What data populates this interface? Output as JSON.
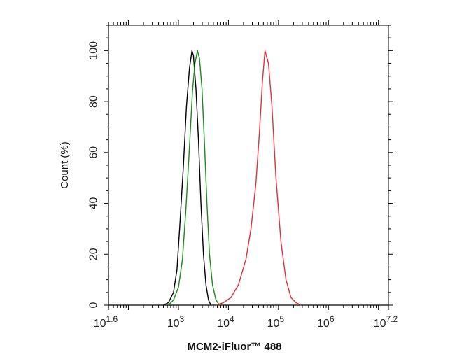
{
  "chart_data": {
    "type": "line",
    "title": "",
    "xlabel": "MCM2-iFluor™ 488",
    "ylabel": "Count (%)",
    "x_scale": "log10",
    "xlim_exponent": [
      1.6,
      7.2
    ],
    "ylim": [
      0,
      110
    ],
    "x_ticks": [
      {
        "base": "10",
        "exp": "1.6",
        "value": 1.6
      },
      {
        "base": "10",
        "exp": "3",
        "value": 3
      },
      {
        "base": "10",
        "exp": "4",
        "value": 4
      },
      {
        "base": "10",
        "exp": "5",
        "value": 5
      },
      {
        "base": "10",
        "exp": "6",
        "value": 6
      },
      {
        "base": "10",
        "exp": "7.2",
        "value": 7.2
      }
    ],
    "y_ticks": [
      "0",
      "20",
      "40",
      "60",
      "80",
      "100"
    ],
    "grid": false,
    "legend": "none",
    "series": [
      {
        "color": "#000000",
        "log10_x": [
          2.7,
          2.8,
          2.9,
          2.97,
          3.03,
          3.1,
          3.16,
          3.22,
          3.27,
          3.3,
          3.35,
          3.4,
          3.45,
          3.5,
          3.55,
          3.6,
          3.65
        ],
        "y": [
          0,
          1,
          5,
          14,
          32,
          55,
          78,
          93,
          100,
          98,
          85,
          65,
          40,
          20,
          8,
          2,
          0
        ]
      },
      {
        "color": "#1a8a1a",
        "log10_x": [
          2.8,
          2.9,
          3.0,
          3.08,
          3.15,
          3.22,
          3.28,
          3.33,
          3.38,
          3.42,
          3.47,
          3.52,
          3.57,
          3.62,
          3.68,
          3.75,
          3.82
        ],
        "y": [
          0,
          2,
          7,
          18,
          38,
          62,
          84,
          95,
          100,
          97,
          85,
          64,
          40,
          20,
          8,
          2,
          0
        ]
      },
      {
        "color": "#e0303a",
        "log10_x": [
          3.75,
          3.9,
          4.05,
          4.2,
          4.35,
          4.45,
          4.55,
          4.62,
          4.68,
          4.73,
          4.8,
          4.87,
          4.95,
          5.05,
          5.15,
          5.25,
          5.35,
          5.45
        ],
        "y": [
          0,
          1,
          3,
          8,
          18,
          30,
          48,
          68,
          88,
          100,
          95,
          78,
          50,
          25,
          10,
          3,
          1,
          0
        ]
      }
    ]
  }
}
